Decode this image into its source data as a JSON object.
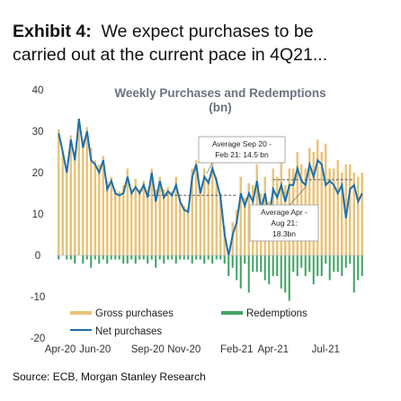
{
  "exhibit": {
    "label": "Exhibit 4:",
    "title_line1": "We expect purchases to be",
    "title_line2": "carried out at the current pace in 4Q21..."
  },
  "source": "Source: ECB, Morgan Stanley Research",
  "colors": {
    "gross": "#e8c47a",
    "redemptions": "#3fa364",
    "net": "#1f6fa8",
    "annotation_border": "#999999"
  },
  "chart_data": {
    "type": "bar",
    "title": "Weekly Purchases and Redemptions",
    "title_line2": "(bn)",
    "ylim": [
      -20,
      40
    ],
    "yticks": [
      "40",
      "30",
      "20",
      "10",
      "0",
      "-10",
      "-20"
    ],
    "ytick_values": [
      40,
      30,
      20,
      10,
      0,
      -10,
      -20
    ],
    "xticks": [
      "Apr-20",
      "Jun-20",
      "Sep-20",
      "Nov-20",
      "Feb-21",
      "Apr-21",
      "Jul-21"
    ],
    "xtick_weeks": [
      1,
      10,
      23,
      32,
      45,
      54,
      67
    ],
    "grid": false,
    "legend_position": "bottom-left",
    "series": [
      {
        "name": "Gross purchases",
        "kind": "bar",
        "values": [
          30.5,
          25,
          21,
          29,
          25,
          33,
          28,
          31,
          26,
          23,
          22,
          24,
          18,
          19,
          16,
          15.5,
          17,
          21,
          16,
          18.5,
          16,
          18,
          16,
          21,
          16,
          19,
          16,
          16.5,
          15.5,
          19,
          14,
          12,
          11.5,
          21,
          23,
          16,
          21,
          18.5,
          23,
          19,
          15,
          7,
          1,
          8,
          11,
          19,
          14,
          17.5,
          17,
          22,
          15,
          19,
          13,
          21,
          19,
          23,
          17,
          21,
          21,
          25,
          22,
          21,
          26,
          25,
          28,
          25,
          27,
          21,
          21,
          23,
          20,
          22,
          22,
          20,
          19,
          20
        ]
      },
      {
        "name": "Redemptions",
        "kind": "bar",
        "values": [
          -1,
          0,
          -1,
          -1,
          -2,
          0,
          -2,
          -1,
          -3,
          -1,
          -2,
          -1,
          -2,
          -1,
          -1,
          -1,
          -2,
          -2,
          -1,
          -2,
          -1,
          -1,
          -2,
          -1,
          -3,
          -1,
          -2,
          -1,
          -1,
          -2,
          -1,
          -1,
          -1,
          -2,
          -1,
          -1,
          -2,
          -1,
          -2,
          -1,
          -1,
          -2,
          -5,
          -3,
          -6,
          -8,
          -2,
          -9,
          -4,
          -4,
          -4,
          -6,
          -7,
          -5,
          -5,
          -8,
          -9,
          -11,
          -4,
          -5,
          -3,
          -5,
          -4,
          -7,
          -5,
          -5,
          -2,
          -6,
          -4,
          -4,
          -5,
          -3,
          -2,
          -9,
          -6,
          -5
        ]
      },
      {
        "name": "Net purchases",
        "kind": "line",
        "values": [
          29.5,
          25,
          20,
          28,
          23,
          33,
          26,
          30,
          23,
          22,
          20,
          23,
          16,
          18,
          15,
          14.5,
          15,
          19,
          15,
          16.5,
          15,
          17,
          14,
          20,
          13,
          18,
          14,
          15.5,
          14.5,
          17,
          13,
          11,
          10.5,
          19,
          22,
          15,
          19,
          17.5,
          21,
          18,
          14,
          5,
          0,
          5,
          8,
          15,
          12,
          15,
          13,
          18,
          11,
          15,
          9,
          16,
          14,
          17,
          13,
          17,
          17,
          21,
          18,
          17,
          22,
          19,
          23,
          22,
          17,
          18,
          17,
          15,
          17,
          9,
          16,
          17,
          13,
          15
        ]
      }
    ],
    "annotations": [
      {
        "lines": [
          "Average Sep 20 -",
          "Feb 21: 14.5 bn"
        ],
        "value": 14.5,
        "period_weeks": [
          23,
          45
        ]
      },
      {
        "lines": [
          "Average Apr -",
          "Aug 21:",
          "18.3bn"
        ],
        "value": 18.3,
        "period_weeks": [
          54,
          74
        ]
      }
    ]
  }
}
